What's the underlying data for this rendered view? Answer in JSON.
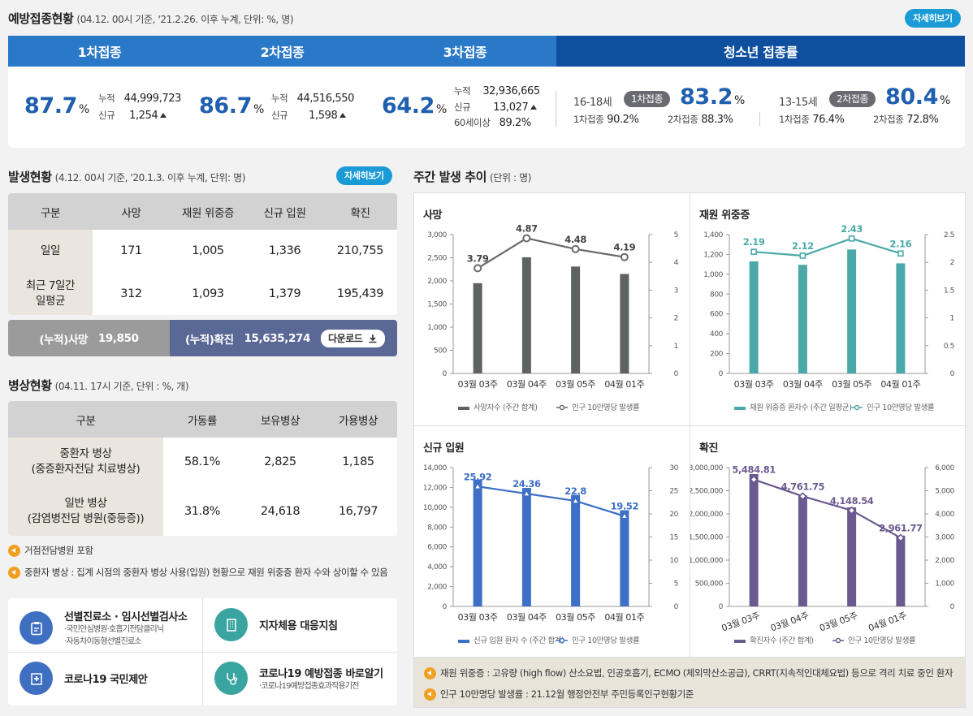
{
  "vaccination": {
    "title": "예방접종현황",
    "subtitle": "(04.12. 00시 기준, '21.2.26. 이후 누계, 단위: %, 명)",
    "more": "자세히보기",
    "tabs": [
      "1차접종",
      "2차접종",
      "3차접종",
      "청소년 접종률"
    ],
    "dose1": {
      "rate": "87.7",
      "unit": "%",
      "cum_label": "누적",
      "cum": "44,999,723",
      "new_label": "신규",
      "new": "1,254"
    },
    "dose2": {
      "rate": "86.7",
      "unit": "%",
      "cum_label": "누적",
      "cum": "44,516,550",
      "new_label": "신규",
      "new": "1,598"
    },
    "dose3": {
      "rate": "64.2",
      "unit": "%",
      "cum_label": "누적",
      "cum": "32,936,665",
      "new_label": "신규",
      "new": "13,027",
      "over60_label": "60세이상",
      "over60": "89.2%"
    },
    "teen1": {
      "age": "16-18세",
      "pill": "1차접종",
      "rate": "83.2",
      "unit": "%",
      "d1_label": "1차접종",
      "d1": "90.2%",
      "d2_label": "2차접종",
      "d2": "88.3%"
    },
    "teen2": {
      "age": "13-15세",
      "pill": "2차접종",
      "rate": "80.4",
      "unit": "%",
      "d1_label": "1차접종",
      "d1": "76.4%",
      "d2_label": "2차접종",
      "d2": "72.8%"
    }
  },
  "outbreak": {
    "title": "발생현황",
    "subtitle": "(4.12. 00시 기준, '20.1.3. 이후 누계, 단위: 명)",
    "more": "자세히보기",
    "headers": [
      "구분",
      "사망",
      "재원 위중증",
      "신규 입원",
      "확진"
    ],
    "rows": [
      {
        "label": "일일",
        "values": [
          "171",
          "1,005",
          "1,336",
          "210,755"
        ]
      },
      {
        "label": "최근 7일간\n일평균",
        "values": [
          "312",
          "1,093",
          "1,379",
          "195,439"
        ]
      }
    ],
    "cum_death_label": "(누적)사망",
    "cum_death": "19,850",
    "cum_conf_label": "(누적)확진",
    "cum_conf": "15,635,274",
    "download": "다운로드"
  },
  "beds": {
    "title": "병상현황",
    "subtitle": "(04.11. 17시 기준, 단위 : %, 개)",
    "headers": [
      "구분",
      "가동률",
      "보유병상",
      "가용병상"
    ],
    "rows": [
      {
        "label": "중환자 병상\n(중증환자전담 치료병상)",
        "values": [
          "58.1%",
          "2,825",
          "1,185"
        ]
      },
      {
        "label": "일반 병상\n(감염병전담 병원(중등증))",
        "values": [
          "31.8%",
          "24,618",
          "16,797"
        ]
      }
    ],
    "notes": [
      "거점전담병원 포함",
      "중환자 병상 : 집계 시점의 중환자 병상 사용(입원) 현황으로 재원 위중증 환자 수와 상이할 수 있음"
    ]
  },
  "links": [
    {
      "title": "선별진료소 · 임시선별검사소",
      "sub": [
        "·국민안심병원·호흡기전담클리닉",
        "·자동차이동형선별진료소"
      ],
      "icon": "clipboard-icon",
      "color": "#3f6fc0"
    },
    {
      "title": "지자체용 대응지침",
      "sub": [],
      "icon": "building-icon",
      "color": "#3aa5a0"
    },
    {
      "title": "코로나19 국민제안",
      "sub": [],
      "icon": "hospital-icon",
      "color": "#3f6fc0"
    },
    {
      "title": "코로나19 예방접종 바로알기",
      "sub": [
        "·코로나19예방접종효과작용기전"
      ],
      "icon": "stethoscope-icon",
      "color": "#3aa5a0"
    }
  ],
  "weekly": {
    "title": "주간 발생 추이",
    "subtitle": "(단위 : 명)",
    "notes": [
      "재원 위중증 : 고유량 (high flow) 산소요법, 인공호흡기, ECMO (체외막산소공급), CRRT(지속적인대체요법) 등으로 격리 치료 중인 환자",
      "인구 10만명당 발생률 : 21.12월 행정안전부 주민등록인구현황기준"
    ]
  },
  "chart_data": [
    {
      "type": "bar",
      "title": "사망",
      "categories": [
        "03월 03주",
        "03월 04주",
        "03월 05주",
        "04월 01주"
      ],
      "series": [
        {
          "name": "사망자수 (주간 합계)",
          "type": "bar",
          "values": [
            1950,
            2510,
            2310,
            2150
          ]
        },
        {
          "name": "인구 10만명당 발생률",
          "type": "line",
          "axis": "right",
          "values": [
            3.79,
            4.87,
            4.48,
            4.19
          ]
        }
      ],
      "ylim": [
        0,
        3000
      ],
      "yticks": [
        0,
        500,
        1000,
        1500,
        2000,
        2500,
        3000
      ],
      "ylim_right": [
        0,
        5
      ],
      "yticks_right": [
        0,
        1,
        2,
        3,
        4,
        5
      ],
      "bar_color": "#5c6360",
      "line_color": "#666b69",
      "labels": [
        "3.79",
        "4.87",
        "4.48",
        "4.19"
      ],
      "tick_labels": [
        "0",
        "500",
        "1,000",
        "1,500",
        "2,000",
        "2,500",
        "3,000"
      ],
      "tick_labels_right": [
        "0",
        "1",
        "2",
        "3",
        "4",
        "5"
      ]
    },
    {
      "type": "bar",
      "title": "재원 위중증",
      "categories": [
        "03월 03주",
        "03월 04주",
        "03월 05주",
        "04월 01주"
      ],
      "series": [
        {
          "name": "재원 위중증 환자수 (주간 일평균)",
          "type": "bar",
          "values": [
            1130,
            1095,
            1250,
            1110
          ]
        },
        {
          "name": "인구 10만명당 발생률",
          "type": "line",
          "axis": "right",
          "values": [
            2.19,
            2.12,
            2.43,
            2.16
          ]
        }
      ],
      "ylim": [
        0,
        1400
      ],
      "yticks": [
        0,
        200,
        400,
        600,
        800,
        1000,
        1200,
        1400
      ],
      "ylim_right": [
        0,
        2.5
      ],
      "yticks_right": [
        0,
        0.5,
        1,
        1.5,
        2,
        2.5
      ],
      "bar_color": "#4aa9a8",
      "line_color": "#4aa9a8",
      "labels": [
        "2.19",
        "2.12",
        "2.43",
        "2.16"
      ],
      "tick_labels": [
        "0",
        "200",
        "400",
        "600",
        "800",
        "1,000",
        "1,200",
        "1,400"
      ],
      "tick_labels_right": [
        "0",
        "0.5",
        "1",
        "1.5",
        "2",
        "2.5"
      ]
    },
    {
      "type": "bar",
      "title": "신규 입원",
      "categories": [
        "03월 03주",
        "03월 04주",
        "03월 05주",
        "04월 01주"
      ],
      "series": [
        {
          "name": "신규 입원 환자 수 (주간 합계)",
          "type": "bar",
          "values": [
            12800,
            11950,
            11250,
            9700
          ]
        },
        {
          "name": "인구 10만명당 발생률",
          "type": "line",
          "axis": "right",
          "values": [
            25.92,
            24.36,
            22.8,
            19.52
          ]
        }
      ],
      "ylim": [
        0,
        14000
      ],
      "yticks": [
        0,
        2000,
        4000,
        6000,
        8000,
        10000,
        12000,
        14000
      ],
      "ylim_right": [
        0,
        30
      ],
      "yticks_right": [
        0,
        5,
        10,
        15,
        20,
        25,
        30
      ],
      "bar_color": "#3d6fc6",
      "line_color": "#3d6fc6",
      "labels": [
        "25.92",
        "24.36",
        "22.8",
        "19.52"
      ],
      "tick_labels": [
        "0",
        "2,000",
        "4,000",
        "6,000",
        "8,000",
        "10,000",
        "12,000",
        "14,000"
      ],
      "tick_labels_right": [
        "0",
        "5",
        "10",
        "15",
        "20",
        "25",
        "30"
      ]
    },
    {
      "type": "bar",
      "title": "확진",
      "categories": [
        "03월 03주",
        "03월 04주",
        "03월 05주",
        "04월 01주"
      ],
      "series": [
        {
          "name": "확진자수 (주간 합계)",
          "type": "bar",
          "values": [
            2860000,
            2400000,
            2140000,
            1530000
          ]
        },
        {
          "name": "인구 10만명당 발생률",
          "type": "line",
          "axis": "right",
          "values": [
            5484.81,
            4761.75,
            4148.54,
            2961.77
          ]
        }
      ],
      "ylim": [
        0,
        3000000
      ],
      "yticks": [
        0,
        500000,
        1000000,
        1500000,
        2000000,
        2500000,
        3000000
      ],
      "ylim_right": [
        0,
        6000
      ],
      "yticks_right": [
        0,
        1000,
        2000,
        3000,
        4000,
        5000,
        6000
      ],
      "bar_color": "#6b5a90",
      "line_color": "#6b5a90",
      "labels": [
        "5,484.81",
        "4,761.75",
        "4,148.54",
        "2,961.77"
      ],
      "tick_labels": [
        "0",
        "500,000",
        "1,000,000",
        "1,500,000",
        "2,000,000",
        "2,500,000",
        "3,000,000"
      ],
      "tick_labels_right": [
        "0",
        "1,000",
        "2,000",
        "3,000",
        "4,000",
        "5,000",
        "6,000"
      ],
      "rotated_x": true
    }
  ]
}
